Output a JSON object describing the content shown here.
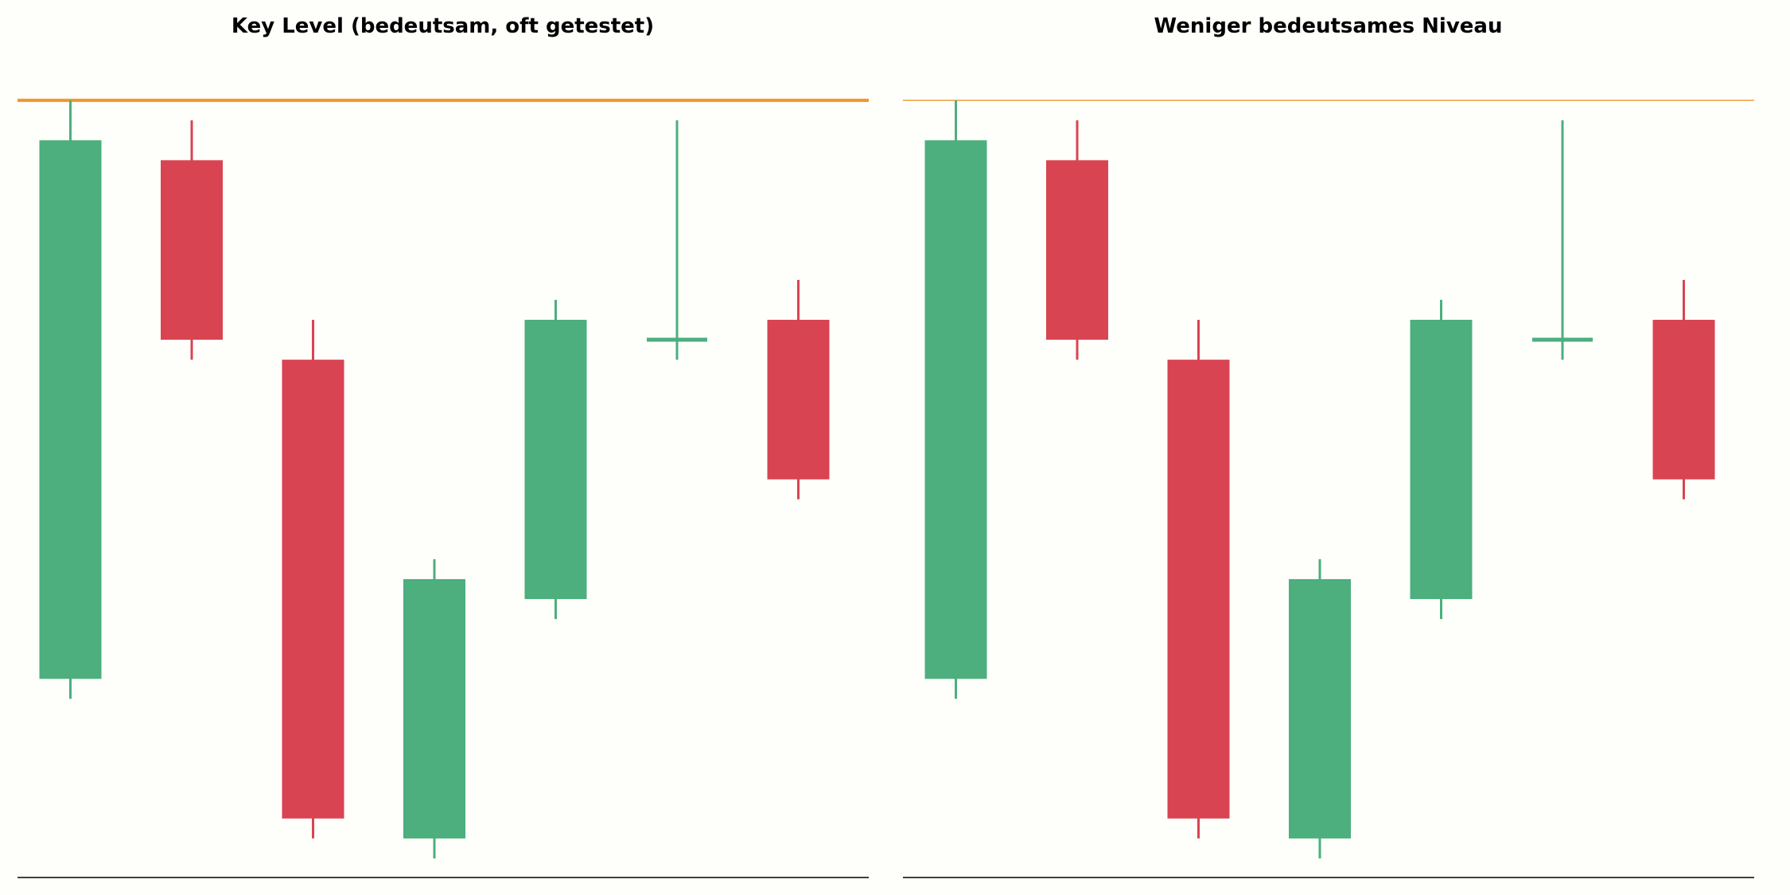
{
  "colors": {
    "background": "#fefefb",
    "bullish": "#4caf7d",
    "bearish": "#d94452",
    "level": "#f0962e",
    "axis": "#000000"
  },
  "chart_data": [
    {
      "type": "candlestick",
      "title": "Key Level (bedeutsam, oft getestet)",
      "xlabel": "",
      "ylabel": "",
      "level": {
        "value": 100,
        "emphasis": "strong"
      },
      "ylim": [
        62,
        102
      ],
      "grid": false,
      "candles": [
        {
          "open": 71,
          "close": 98,
          "high": 100,
          "low": 70
        },
        {
          "open": 97,
          "close": 88,
          "high": 99,
          "low": 87
        },
        {
          "open": 87,
          "close": 64,
          "high": 89,
          "low": 63
        },
        {
          "open": 63,
          "close": 76,
          "high": 77,
          "low": 62
        },
        {
          "open": 75,
          "close": 89,
          "high": 90,
          "low": 74
        },
        {
          "open": 88,
          "close": 88,
          "high": 99,
          "low": 87
        },
        {
          "open": 89,
          "close": 81,
          "high": 91,
          "low": 80
        }
      ]
    },
    {
      "type": "candlestick",
      "title": "Weniger bedeutsames Niveau",
      "xlabel": "",
      "ylabel": "",
      "level": {
        "value": 100,
        "emphasis": "weak"
      },
      "ylim": [
        62,
        102
      ],
      "grid": false,
      "candles": [
        {
          "open": 71,
          "close": 98,
          "high": 100,
          "low": 70
        },
        {
          "open": 97,
          "close": 88,
          "high": 99,
          "low": 87
        },
        {
          "open": 87,
          "close": 64,
          "high": 89,
          "low": 63
        },
        {
          "open": 63,
          "close": 76,
          "high": 77,
          "low": 62
        },
        {
          "open": 75,
          "close": 89,
          "high": 90,
          "low": 74
        },
        {
          "open": 88,
          "close": 88,
          "high": 99,
          "low": 87
        },
        {
          "open": 89,
          "close": 81,
          "high": 91,
          "low": 80
        }
      ]
    }
  ]
}
